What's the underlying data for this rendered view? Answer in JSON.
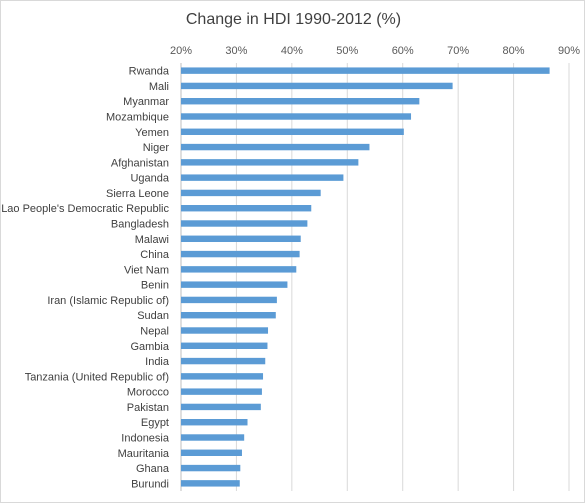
{
  "chart_data": {
    "type": "bar",
    "orientation": "horizontal",
    "title": "Change in HDI 1990-2012 (%)",
    "xlabel": "",
    "ylabel": "",
    "xlim": [
      20,
      90
    ],
    "x_ticks": [
      "20%",
      "30%",
      "40%",
      "50%",
      "60%",
      "70%",
      "80%",
      "90%"
    ],
    "x_axis_position": "top",
    "grid": true,
    "bar_color": "#5B9BD5",
    "categories": [
      "Rwanda",
      "Mali",
      "Myanmar",
      "Mozambique",
      "Yemen",
      "Niger",
      "Afghanistan",
      "Uganda",
      "Sierra Leone",
      "Lao People's Democratic Republic",
      "Bangladesh",
      "Malawi",
      "China",
      "Viet Nam",
      "Benin",
      "Iran (Islamic Republic of)",
      "Sudan",
      "Nepal",
      "Gambia",
      "India",
      "Tanzania (United Republic of)",
      "Morocco",
      "Pakistan",
      "Egypt",
      "Indonesia",
      "Mauritania",
      "Ghana",
      "Burundi"
    ],
    "values": [
      86.5,
      69.0,
      63.0,
      61.5,
      60.2,
      54.0,
      52.0,
      49.3,
      45.2,
      43.5,
      42.8,
      41.6,
      41.4,
      40.8,
      39.2,
      37.3,
      37.1,
      35.7,
      35.6,
      35.2,
      34.8,
      34.6,
      34.4,
      32.0,
      31.4,
      31.0,
      30.7,
      30.6
    ]
  }
}
